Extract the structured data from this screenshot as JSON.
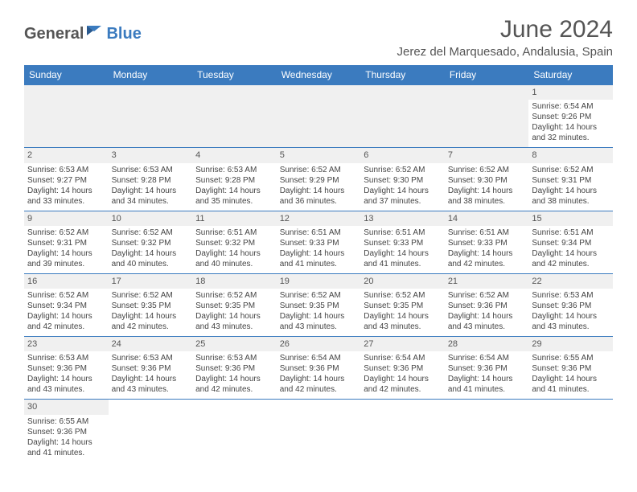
{
  "logo": {
    "text1": "General",
    "text2": "Blue"
  },
  "title": "June 2024",
  "location": "Jerez del Marquesado, Andalusia, Spain",
  "colors": {
    "header_bg": "#3b7bbf",
    "header_text": "#ffffff",
    "daynum_bg": "#f0f0f0",
    "text": "#444444",
    "border": "#3b7bbf"
  },
  "weekdays": [
    "Sunday",
    "Monday",
    "Tuesday",
    "Wednesday",
    "Thursday",
    "Friday",
    "Saturday"
  ],
  "days": {
    "1": {
      "sunrise": "6:54 AM",
      "sunset": "9:26 PM",
      "dl_h": 14,
      "dl_m": 32
    },
    "2": {
      "sunrise": "6:53 AM",
      "sunset": "9:27 PM",
      "dl_h": 14,
      "dl_m": 33
    },
    "3": {
      "sunrise": "6:53 AM",
      "sunset": "9:28 PM",
      "dl_h": 14,
      "dl_m": 34
    },
    "4": {
      "sunrise": "6:53 AM",
      "sunset": "9:28 PM",
      "dl_h": 14,
      "dl_m": 35
    },
    "5": {
      "sunrise": "6:52 AM",
      "sunset": "9:29 PM",
      "dl_h": 14,
      "dl_m": 36
    },
    "6": {
      "sunrise": "6:52 AM",
      "sunset": "9:30 PM",
      "dl_h": 14,
      "dl_m": 37
    },
    "7": {
      "sunrise": "6:52 AM",
      "sunset": "9:30 PM",
      "dl_h": 14,
      "dl_m": 38
    },
    "8": {
      "sunrise": "6:52 AM",
      "sunset": "9:31 PM",
      "dl_h": 14,
      "dl_m": 38
    },
    "9": {
      "sunrise": "6:52 AM",
      "sunset": "9:31 PM",
      "dl_h": 14,
      "dl_m": 39
    },
    "10": {
      "sunrise": "6:52 AM",
      "sunset": "9:32 PM",
      "dl_h": 14,
      "dl_m": 40
    },
    "11": {
      "sunrise": "6:51 AM",
      "sunset": "9:32 PM",
      "dl_h": 14,
      "dl_m": 40
    },
    "12": {
      "sunrise": "6:51 AM",
      "sunset": "9:33 PM",
      "dl_h": 14,
      "dl_m": 41
    },
    "13": {
      "sunrise": "6:51 AM",
      "sunset": "9:33 PM",
      "dl_h": 14,
      "dl_m": 41
    },
    "14": {
      "sunrise": "6:51 AM",
      "sunset": "9:33 PM",
      "dl_h": 14,
      "dl_m": 42
    },
    "15": {
      "sunrise": "6:51 AM",
      "sunset": "9:34 PM",
      "dl_h": 14,
      "dl_m": 42
    },
    "16": {
      "sunrise": "6:52 AM",
      "sunset": "9:34 PM",
      "dl_h": 14,
      "dl_m": 42
    },
    "17": {
      "sunrise": "6:52 AM",
      "sunset": "9:35 PM",
      "dl_h": 14,
      "dl_m": 42
    },
    "18": {
      "sunrise": "6:52 AM",
      "sunset": "9:35 PM",
      "dl_h": 14,
      "dl_m": 43
    },
    "19": {
      "sunrise": "6:52 AM",
      "sunset": "9:35 PM",
      "dl_h": 14,
      "dl_m": 43
    },
    "20": {
      "sunrise": "6:52 AM",
      "sunset": "9:35 PM",
      "dl_h": 14,
      "dl_m": 43
    },
    "21": {
      "sunrise": "6:52 AM",
      "sunset": "9:36 PM",
      "dl_h": 14,
      "dl_m": 43
    },
    "22": {
      "sunrise": "6:53 AM",
      "sunset": "9:36 PM",
      "dl_h": 14,
      "dl_m": 43
    },
    "23": {
      "sunrise": "6:53 AM",
      "sunset": "9:36 PM",
      "dl_h": 14,
      "dl_m": 43
    },
    "24": {
      "sunrise": "6:53 AM",
      "sunset": "9:36 PM",
      "dl_h": 14,
      "dl_m": 43
    },
    "25": {
      "sunrise": "6:53 AM",
      "sunset": "9:36 PM",
      "dl_h": 14,
      "dl_m": 42
    },
    "26": {
      "sunrise": "6:54 AM",
      "sunset": "9:36 PM",
      "dl_h": 14,
      "dl_m": 42
    },
    "27": {
      "sunrise": "6:54 AM",
      "sunset": "9:36 PM",
      "dl_h": 14,
      "dl_m": 42
    },
    "28": {
      "sunrise": "6:54 AM",
      "sunset": "9:36 PM",
      "dl_h": 14,
      "dl_m": 41
    },
    "29": {
      "sunrise": "6:55 AM",
      "sunset": "9:36 PM",
      "dl_h": 14,
      "dl_m": 41
    },
    "30": {
      "sunrise": "6:55 AM",
      "sunset": "9:36 PM",
      "dl_h": 14,
      "dl_m": 41
    }
  },
  "grid": [
    [
      null,
      null,
      null,
      null,
      null,
      null,
      1
    ],
    [
      2,
      3,
      4,
      5,
      6,
      7,
      8
    ],
    [
      9,
      10,
      11,
      12,
      13,
      14,
      15
    ],
    [
      16,
      17,
      18,
      19,
      20,
      21,
      22
    ],
    [
      23,
      24,
      25,
      26,
      27,
      28,
      29
    ],
    [
      30,
      null,
      null,
      null,
      null,
      null,
      null
    ]
  ],
  "labels": {
    "sunrise_prefix": "Sunrise: ",
    "sunset_prefix": "Sunset: ",
    "daylight_prefix": "Daylight: ",
    "hours_and": " hours and ",
    "minutes_suffix": " minutes."
  }
}
